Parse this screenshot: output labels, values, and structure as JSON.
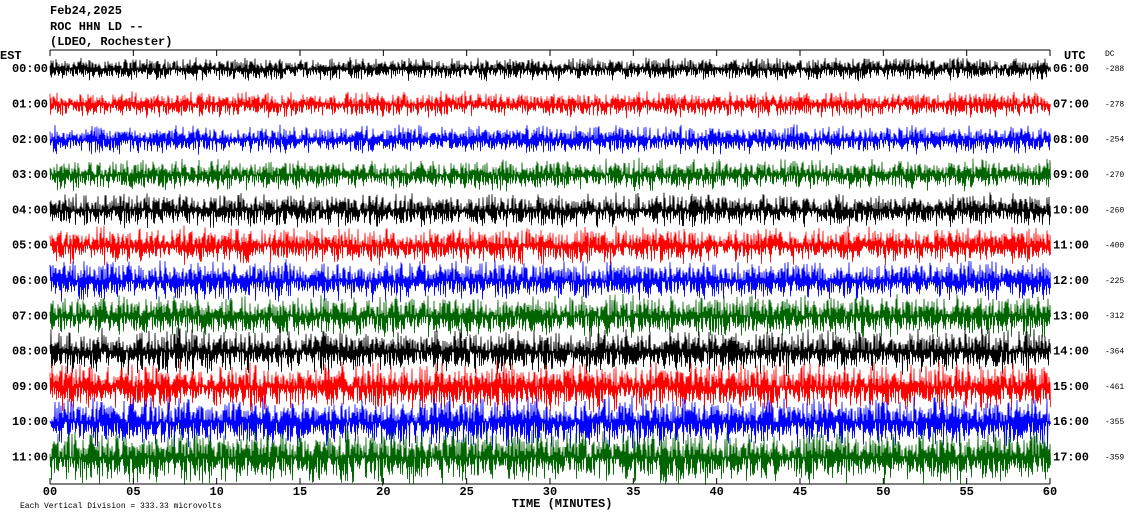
{
  "header": {
    "date": "Feb24,2025",
    "station": "ROC HHN LD --",
    "location": "(LDEO, Rochester)"
  },
  "left_axis_title": "EST",
  "right_axis_title": "UTC",
  "dc_title": "DC",
  "rows": [
    {
      "est": "00:00",
      "utc": "06:00",
      "dc": -288,
      "color": "#000000"
    },
    {
      "est": "01:00",
      "utc": "07:00",
      "dc": -278,
      "color": "#ff0000"
    },
    {
      "est": "02:00",
      "utc": "08:00",
      "dc": -254,
      "color": "#0000ff"
    },
    {
      "est": "03:00",
      "utc": "09:00",
      "dc": -270,
      "color": "#006400"
    },
    {
      "est": "04:00",
      "utc": "10:00",
      "dc": -260,
      "color": "#000000"
    },
    {
      "est": "05:00",
      "utc": "11:00",
      "dc": -400,
      "color": "#ff0000"
    },
    {
      "est": "06:00",
      "utc": "12:00",
      "dc": -225,
      "color": "#0000ff"
    },
    {
      "est": "07:00",
      "utc": "13:00",
      "dc": -312,
      "color": "#006400"
    },
    {
      "est": "08:00",
      "utc": "14:00",
      "dc": -364,
      "color": "#000000"
    },
    {
      "est": "09:00",
      "utc": "15:00",
      "dc": -461,
      "color": "#ff0000"
    },
    {
      "est": "10:00",
      "utc": "16:00",
      "dc": -355,
      "color": "#0000ff"
    },
    {
      "est": "11:00",
      "utc": "17:00",
      "dc": -359,
      "color": "#006400"
    }
  ],
  "x_axis": {
    "title": "TIME (MINUTES)",
    "ticks": [
      "00",
      "05",
      "10",
      "15",
      "20",
      "25",
      "30",
      "35",
      "40",
      "45",
      "50",
      "55",
      "60"
    ]
  },
  "footer": "Each Vertical Division =  333.33 microvolts"
}
